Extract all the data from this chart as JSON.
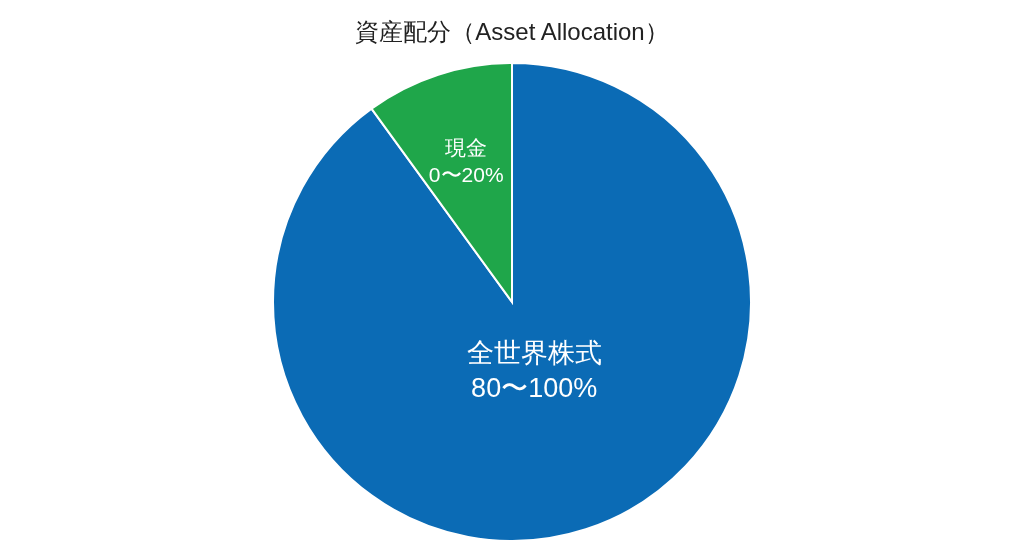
{
  "chart_data": {
    "type": "pie",
    "title": "資産配分（Asset Allocation）",
    "categories": [
      "全世界株式",
      "現金"
    ],
    "values": [
      90,
      10
    ],
    "colors": [
      "#0b6bb5",
      "#1fa64a"
    ],
    "annotations": [
      "80〜100%",
      "0〜20%"
    ]
  }
}
